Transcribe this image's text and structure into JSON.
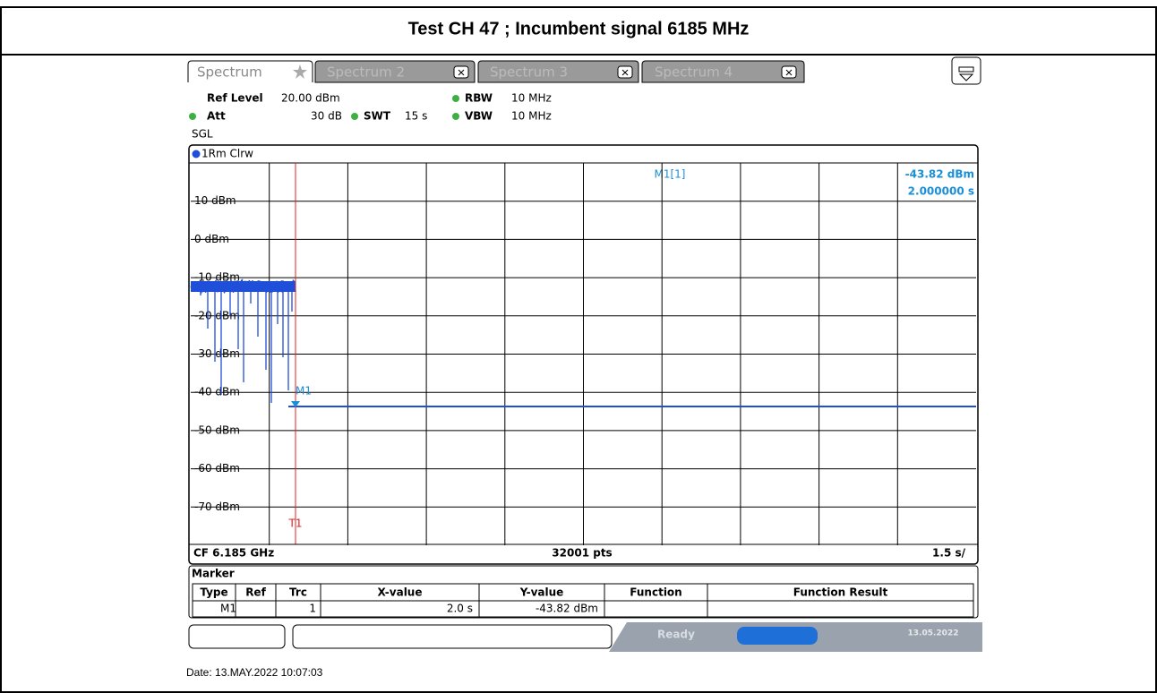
{
  "title": "Test CH 47 ; Incumbent signal 6185 MHz",
  "tabs": [
    "Spectrum",
    "Spectrum 2",
    "Spectrum 3",
    "Spectrum 4"
  ],
  "settings": {
    "ref_level_label": "Ref Level",
    "ref_level": "20.00 dBm",
    "att_label": "Att",
    "att": "30 dB",
    "swt_label": "SWT",
    "swt": "15 s",
    "rbw_label": "RBW",
    "rbw": "10 MHz",
    "vbw_label": "VBW",
    "vbw": "10 MHz",
    "mode": "SGL"
  },
  "trace_label": "1Rm Clrw",
  "marker_readout": {
    "name": "M1[1]",
    "level": "-43.82 dBm",
    "time": "2.000000 s"
  },
  "y_labels": [
    "10 dBm",
    "0 dBm",
    "-10 dBm",
    "-20 dBm",
    "-30 dBm",
    "-40 dBm",
    "-50 dBm",
    "-60 dBm",
    "-70 dBm"
  ],
  "marker_label": "M1",
  "trigger_label": "T1",
  "footer": {
    "center_freq": "CF 6.185 GHz",
    "points": "32001 pts",
    "sweep": "1.5 s/"
  },
  "marker_table": {
    "title": "Marker",
    "columns": [
      "Type",
      "Ref",
      "Trc",
      "X-value",
      "Y-value",
      "Function",
      "Function Result"
    ],
    "row": {
      "type": "M1",
      "trc": "1",
      "x_value": "2.0 s",
      "y_value": "-43.82 dBm"
    }
  },
  "status": {
    "state": "Ready",
    "date": "13.05.2022"
  },
  "date": "Date: 13.MAY.2022 10:07:03"
}
